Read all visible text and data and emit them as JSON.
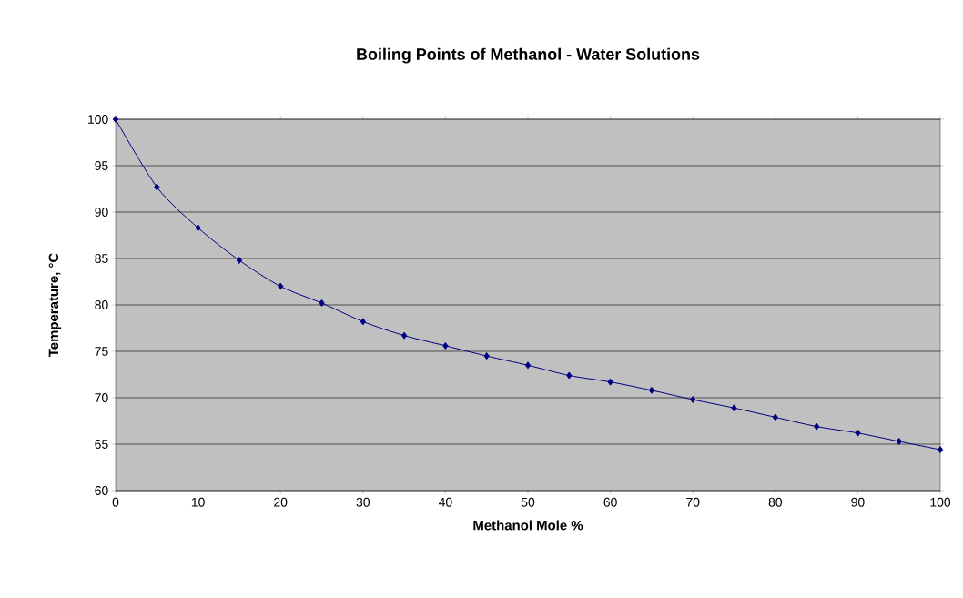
{
  "chart_data": {
    "type": "line",
    "title": "Boiling Points of Methanol - Water Solutions",
    "xlabel": "Methanol Mole %",
    "ylabel": "Temperature, °C",
    "x": [
      0,
      5,
      10,
      15,
      20,
      25,
      30,
      35,
      40,
      45,
      50,
      55,
      60,
      65,
      70,
      75,
      80,
      85,
      90,
      95,
      100
    ],
    "series": [
      {
        "color": "#000080",
        "values": [
          100,
          92.7,
          88.3,
          84.8,
          82.0,
          80.2,
          78.2,
          76.7,
          75.6,
          74.5,
          73.5,
          72.4,
          71.7,
          70.8,
          69.8,
          68.9,
          67.9,
          66.9,
          66.2,
          65.3,
          64.4
        ]
      }
    ],
    "xlim": [
      0,
      100
    ],
    "xticks": [
      0,
      10,
      20,
      30,
      40,
      50,
      60,
      70,
      80,
      90,
      100
    ],
    "ylim": [
      60,
      100
    ],
    "yticks": [
      60,
      65,
      70,
      75,
      80,
      85,
      90,
      95,
      100
    ],
    "grid": "y",
    "marker": "diamond",
    "line_style": "solid"
  }
}
